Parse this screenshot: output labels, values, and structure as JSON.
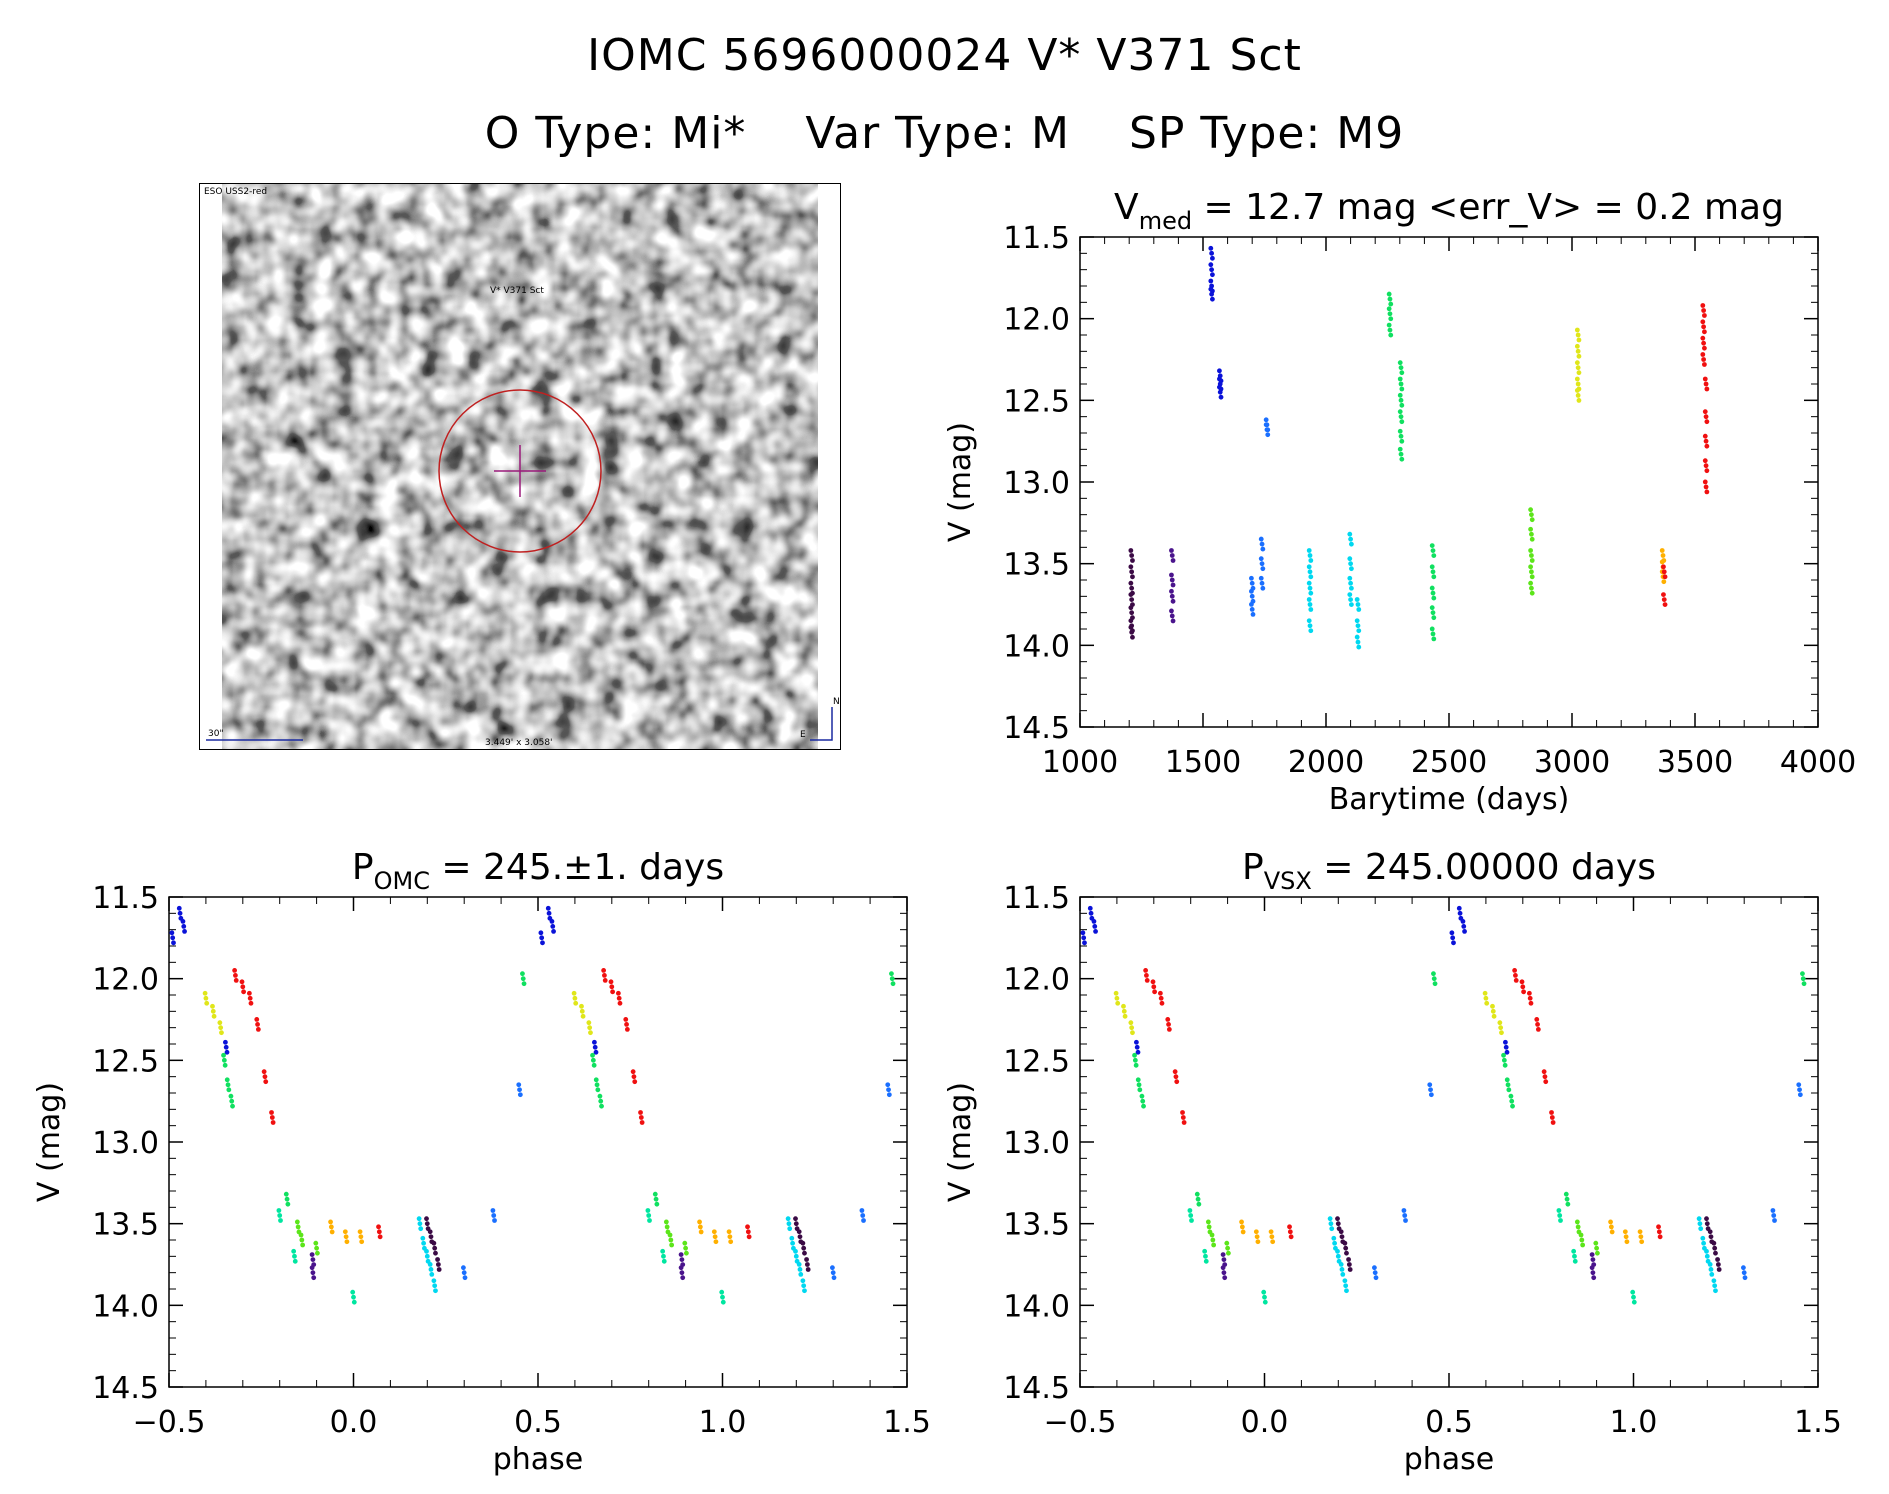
{
  "header": {
    "title": "IOMC 5696000024   V* V371 Sct",
    "otype": "O Type: Mi*",
    "vartype": "Var Type: M",
    "sptype": "SP Type: M9"
  },
  "finder": {
    "survey_label": "ESO USS2-red",
    "target_label": "V* V371 Sct",
    "scale_label": "30\"",
    "size_label": "3.449' x 3.058'",
    "north_label": "N",
    "east_label": "E"
  },
  "colors": {
    "phase_palette": [
      "#3b0a45",
      "#4a148c",
      "#7b1fa2",
      "#0a12d8",
      "#1a6fff",
      "#18a8ff",
      "#00d8f0",
      "#00e6a0",
      "#10e060",
      "#5ce51a",
      "#a8e81a",
      "#e0e61a",
      "#ffb000",
      "#ff6a00",
      "#f01010"
    ]
  },
  "chart_data": [
    {
      "type": "scatter",
      "panel": "light_curve",
      "title_main": "V",
      "title_sub": "med",
      "title_rest": " = 12.7 mag <err_V> = 0.2 mag",
      "xlabel": "Barytime (days)",
      "ylabel": "V (mag)",
      "xlim": [
        1000,
        4000
      ],
      "ylim": [
        14.5,
        11.5
      ],
      "xticks": [
        "1000",
        "1500",
        "2000",
        "2500",
        "3000",
        "3500",
        "4000"
      ],
      "yticks": [
        "11.5",
        "12.0",
        "12.5",
        "13.0",
        "13.5",
        "14.0",
        "14.5"
      ],
      "series": [
        {
          "color": "#3b0a45",
          "x": [
            1210,
            1210,
            1210,
            1210,
            1210,
            1210,
            1210
          ],
          "y": [
            13.45,
            13.55,
            13.65,
            13.72,
            13.8,
            13.88,
            13.92
          ]
        },
        {
          "color": "#4a148c",
          "x": [
            1375,
            1375,
            1375,
            1375
          ],
          "y": [
            13.45,
            13.6,
            13.7,
            13.82
          ]
        },
        {
          "color": "#0a12d8",
          "x": [
            1535,
            1535,
            1535,
            1535,
            1570,
            1570,
            1570
          ],
          "y": [
            11.6,
            11.7,
            11.8,
            11.85,
            12.35,
            12.4,
            12.45
          ]
        },
        {
          "color": "#1a6fff",
          "x": [
            1700,
            1700,
            1700,
            1740,
            1740,
            1740,
            1760,
            1760
          ],
          "y": [
            13.62,
            13.7,
            13.78,
            13.38,
            13.5,
            13.62,
            12.65,
            12.68
          ]
        },
        {
          "color": "#00d8f0",
          "x": [
            1935,
            1935,
            1935,
            1935,
            1935,
            2100,
            2100,
            2100,
            2100,
            2130,
            2130,
            2130
          ],
          "y": [
            13.45,
            13.55,
            13.65,
            13.75,
            13.88,
            13.35,
            13.5,
            13.62,
            13.72,
            13.75,
            13.88,
            13.98
          ]
        },
        {
          "color": "#10e060",
          "x": [
            2260,
            2260,
            2260,
            2305,
            2305,
            2305,
            2305,
            2305,
            2305,
            2435,
            2435,
            2435,
            2435,
            2435
          ],
          "y": [
            11.88,
            11.97,
            12.07,
            12.3,
            12.4,
            12.5,
            12.6,
            12.72,
            12.83,
            13.42,
            13.55,
            13.68,
            13.8,
            13.93
          ]
        },
        {
          "color": "#5ce51a",
          "x": [
            2835,
            2835,
            2835,
            2835,
            2835
          ],
          "y": [
            13.2,
            13.32,
            13.45,
            13.55,
            13.65
          ]
        },
        {
          "color": "#e0e61a",
          "x": [
            3025,
            3025,
            3025,
            3025,
            3025
          ],
          "y": [
            12.1,
            12.2,
            12.3,
            12.4,
            12.47
          ]
        },
        {
          "color": "#ffb000",
          "x": [
            3370,
            3370,
            3370
          ],
          "y": [
            13.45,
            13.52,
            13.58
          ]
        },
        {
          "color": "#f01010",
          "x": [
            3375,
            3375,
            3535,
            3535,
            3535,
            3535,
            3545,
            3545,
            3545,
            3545,
            3545
          ],
          "y": [
            13.55,
            13.72,
            11.95,
            12.05,
            12.15,
            12.25,
            12.4,
            12.6,
            12.75,
            12.9,
            13.03
          ]
        }
      ]
    },
    {
      "type": "scatter",
      "panel": "phase_omc",
      "title_main": "P",
      "title_sub": "OMC",
      "title_rest": " = 245.±1. days",
      "xlabel": "phase",
      "ylabel": "V (mag)",
      "xlim": [
        -0.5,
        1.5
      ],
      "ylim": [
        14.5,
        11.5
      ],
      "xticks": [
        "−0.5",
        "0.0",
        "0.5",
        "1.0",
        "1.5"
      ],
      "yticks": [
        "11.5",
        "12.0",
        "12.5",
        "13.0",
        "13.5",
        "14.0",
        "14.5"
      ],
      "series": [
        {
          "color": "#0a12d8",
          "x": [
            -0.49,
            -0.46,
            -0.47,
            -0.345,
            0.51,
            0.54,
            0.53,
            0.655
          ],
          "y": [
            11.75,
            11.68,
            11.6,
            12.42,
            11.75,
            11.68,
            11.6,
            12.42
          ]
        },
        {
          "color": "#f01010",
          "x": [
            -0.32,
            -0.3,
            -0.28,
            -0.26,
            -0.24,
            -0.22,
            0.07,
            0.68,
            0.7,
            0.72,
            0.74,
            0.76,
            0.78,
            1.07
          ],
          "y": [
            11.98,
            12.05,
            12.12,
            12.28,
            12.6,
            12.85,
            13.55,
            11.98,
            12.05,
            12.12,
            12.28,
            12.6,
            12.85,
            13.55
          ]
        },
        {
          "color": "#e0e61a",
          "x": [
            -0.4,
            -0.38,
            -0.36,
            0.6,
            0.62,
            0.64
          ],
          "y": [
            12.12,
            12.2,
            12.3,
            12.12,
            12.2,
            12.3
          ]
        },
        {
          "color": "#10e060",
          "x": [
            -0.35,
            -0.34,
            -0.33,
            -0.18,
            0.46,
            0.65,
            0.66,
            0.67,
            0.82,
            1.46
          ],
          "y": [
            12.5,
            12.65,
            12.75,
            13.35,
            12.0,
            12.5,
            12.65,
            12.75,
            13.35,
            12.0
          ]
        },
        {
          "color": "#5ce51a",
          "x": [
            -0.15,
            -0.14,
            -0.1,
            0.85,
            0.86,
            0.9
          ],
          "y": [
            13.52,
            13.6,
            13.65,
            13.52,
            13.6,
            13.65
          ]
        },
        {
          "color": "#ffb000",
          "x": [
            -0.06,
            -0.02,
            0.02,
            0.94,
            0.98,
            1.02
          ],
          "y": [
            13.52,
            13.58,
            13.58,
            13.52,
            13.58,
            13.58
          ]
        },
        {
          "color": "#4a148c",
          "x": [
            -0.11,
            -0.11,
            0.89,
            0.89
          ],
          "y": [
            13.72,
            13.8,
            13.72,
            13.8
          ]
        },
        {
          "color": "#00e6a0",
          "x": [
            -0.2,
            -0.16,
            0.0,
            0.8,
            0.84,
            1.0
          ],
          "y": [
            13.45,
            13.7,
            13.95,
            13.45,
            13.7,
            13.95
          ]
        },
        {
          "color": "#00d8f0",
          "x": [
            0.18,
            0.19,
            0.2,
            0.21,
            0.22,
            1.18,
            1.19,
            1.2,
            1.21,
            1.22
          ],
          "y": [
            13.5,
            13.62,
            13.7,
            13.78,
            13.88,
            13.5,
            13.62,
            13.7,
            13.78,
            13.88
          ]
        },
        {
          "color": "#3b0a45",
          "x": [
            0.2,
            0.21,
            0.22,
            0.23,
            1.2,
            1.21,
            1.22,
            1.23
          ],
          "y": [
            13.5,
            13.58,
            13.65,
            13.75,
            13.5,
            13.58,
            13.65,
            13.75
          ]
        },
        {
          "color": "#1a6fff",
          "x": [
            0.3,
            0.38,
            0.45,
            1.3,
            1.38,
            1.45
          ],
          "y": [
            13.8,
            13.45,
            12.68,
            13.8,
            13.45,
            12.68
          ]
        }
      ]
    },
    {
      "type": "scatter",
      "panel": "phase_vsx",
      "title_main": "P",
      "title_sub": "VSX",
      "title_rest": " = 245.00000 days",
      "xlabel": "phase",
      "ylabel": "V (mag)",
      "xlim": [
        -0.5,
        1.5
      ],
      "ylim": [
        14.5,
        11.5
      ],
      "xticks": [
        "−0.5",
        "0.0",
        "0.5",
        "1.0",
        "1.5"
      ],
      "yticks": [
        "11.5",
        "12.0",
        "12.5",
        "13.0",
        "13.5",
        "14.0",
        "14.5"
      ],
      "series": [
        {
          "color": "#0a12d8",
          "x": [
            -0.49,
            -0.46,
            -0.47,
            -0.345,
            0.51,
            0.54,
            0.53,
            0.655
          ],
          "y": [
            11.75,
            11.68,
            11.6,
            12.42,
            11.75,
            11.68,
            11.6,
            12.42
          ]
        },
        {
          "color": "#f01010",
          "x": [
            -0.32,
            -0.3,
            -0.28,
            -0.26,
            -0.24,
            -0.22,
            0.07,
            0.68,
            0.7,
            0.72,
            0.74,
            0.76,
            0.78,
            1.07
          ],
          "y": [
            11.98,
            12.05,
            12.12,
            12.28,
            12.6,
            12.85,
            13.55,
            11.98,
            12.05,
            12.12,
            12.28,
            12.6,
            12.85,
            13.55
          ]
        },
        {
          "color": "#e0e61a",
          "x": [
            -0.4,
            -0.38,
            -0.36,
            0.6,
            0.62,
            0.64
          ],
          "y": [
            12.12,
            12.2,
            12.3,
            12.12,
            12.2,
            12.3
          ]
        },
        {
          "color": "#10e060",
          "x": [
            -0.35,
            -0.34,
            -0.33,
            -0.18,
            0.46,
            0.65,
            0.66,
            0.67,
            0.82,
            1.46
          ],
          "y": [
            12.5,
            12.65,
            12.75,
            13.35,
            12.0,
            12.5,
            12.65,
            12.75,
            13.35,
            12.0
          ]
        },
        {
          "color": "#5ce51a",
          "x": [
            -0.15,
            -0.14,
            -0.1,
            0.85,
            0.86,
            0.9
          ],
          "y": [
            13.52,
            13.6,
            13.65,
            13.52,
            13.6,
            13.65
          ]
        },
        {
          "color": "#ffb000",
          "x": [
            -0.06,
            -0.02,
            0.02,
            0.94,
            0.98,
            1.02
          ],
          "y": [
            13.52,
            13.58,
            13.58,
            13.52,
            13.58,
            13.58
          ]
        },
        {
          "color": "#4a148c",
          "x": [
            -0.11,
            -0.11,
            0.89,
            0.89
          ],
          "y": [
            13.72,
            13.8,
            13.72,
            13.8
          ]
        },
        {
          "color": "#00e6a0",
          "x": [
            -0.2,
            -0.16,
            0.0,
            0.8,
            0.84,
            1.0
          ],
          "y": [
            13.45,
            13.7,
            13.95,
            13.45,
            13.7,
            13.95
          ]
        },
        {
          "color": "#00d8f0",
          "x": [
            0.18,
            0.19,
            0.2,
            0.21,
            0.22,
            1.18,
            1.19,
            1.2,
            1.21,
            1.22
          ],
          "y": [
            13.5,
            13.62,
            13.7,
            13.78,
            13.88,
            13.5,
            13.62,
            13.7,
            13.78,
            13.88
          ]
        },
        {
          "color": "#3b0a45",
          "x": [
            0.2,
            0.21,
            0.22,
            0.23,
            1.2,
            1.21,
            1.22,
            1.23
          ],
          "y": [
            13.5,
            13.58,
            13.65,
            13.75,
            13.5,
            13.58,
            13.65,
            13.75
          ]
        },
        {
          "color": "#1a6fff",
          "x": [
            0.3,
            0.38,
            0.45,
            1.3,
            1.38,
            1.45
          ],
          "y": [
            13.8,
            13.45,
            12.68,
            13.8,
            13.45,
            12.68
          ]
        }
      ]
    }
  ]
}
